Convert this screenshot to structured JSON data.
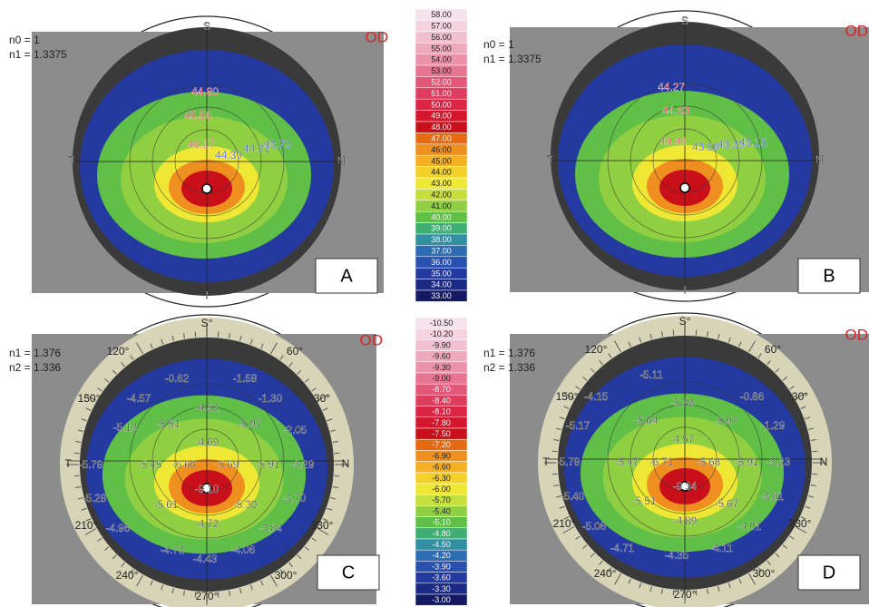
{
  "panels": [
    {
      "label": "A",
      "params": [
        "n0 = 1",
        "n1 = 1.3375"
      ],
      "eye": "OD",
      "compass": [
        "S",
        "T",
        "N",
        "I"
      ],
      "values": [
        "44.80",
        "45.56",
        "46.17",
        "44.39",
        "44.21",
        "43.79"
      ]
    },
    {
      "label": "B",
      "params": [
        "n0 = 1",
        "n1 = 1.3375"
      ],
      "eye": "OD",
      "compass": [
        "S",
        "T",
        "N",
        "I"
      ],
      "values": [
        "44.27",
        "44.63",
        "44.44",
        "43.59",
        "43.39",
        "43.15"
      ]
    },
    {
      "label": "C",
      "params": [
        "n1 = 1.376",
        "n2 = 1.336"
      ],
      "eye": "OD",
      "compass": [
        "S°",
        "T",
        "N"
      ],
      "degrees": [
        "120°",
        "60°",
        "150°",
        "30°",
        "210°",
        "330°",
        "240°",
        "300°",
        "270°"
      ],
      "values": [
        "-0.62",
        "-1.58",
        "-4.57",
        "-4.52",
        "-1.30",
        "-5.13",
        "-5.51",
        "-5.97",
        "-2.05",
        "-4.69",
        "-5.78",
        "-5.45",
        "-6.66",
        "-5.69",
        "-5.91",
        "-3.29",
        "-9.10",
        "-5.28",
        "-5.61",
        "-5.30",
        "-3.70",
        "-4.72",
        "-4.96",
        "-3.84",
        "-4.72",
        "-4.43",
        "-4.06"
      ]
    },
    {
      "label": "D",
      "params": [
        "n1 = 1.376",
        "n2 = 1.336"
      ],
      "eye": "OD",
      "compass": [
        "S°",
        "T",
        "N"
      ],
      "degrees": [
        "120°",
        "60°",
        "150°",
        "30°",
        "210°",
        "330°",
        "240°",
        "300°",
        "270°"
      ],
      "values": [
        "-5.11",
        "-4.15",
        "-5.39",
        "-0.86",
        "-5.17",
        "-5.64",
        "-5.97",
        "-1.29",
        "-4.57",
        "-5.78",
        "-5.47",
        "-6.71",
        "-5.68",
        "-5.91",
        "-3.23",
        "-9.34",
        "-5.40",
        "-5.51",
        "-5.67",
        "-3.81",
        "-4.89",
        "-5.06",
        "-4.01",
        "-4.71",
        "-4.35",
        "-4.11"
      ]
    }
  ],
  "scales": [
    {
      "values": [
        "58.00",
        "57.00",
        "56.00",
        "55.00",
        "54.00",
        "53.00",
        "52.00",
        "51.00",
        "50.00",
        "49.00",
        "48.00",
        "47.00",
        "46.00",
        "45.00",
        "44.00",
        "43.00",
        "42.00",
        "41.00",
        "40.00",
        "39.00",
        "38.00",
        "37.00",
        "36.00",
        "35.00",
        "34.00",
        "33.00"
      ]
    },
    {
      "values": [
        "-10.50",
        "-10.20",
        "-9.90",
        "-9.60",
        "-9.30",
        "-9.00",
        "-8.70",
        "-8.40",
        "-8.10",
        "-7.80",
        "-7.50",
        "-7.20",
        "-6.90",
        "-6.60",
        "-6.30",
        "-6.00",
        "-5.70",
        "-5.40",
        "-5.10",
        "-4.80",
        "-4.50",
        "-4.20",
        "-3.90",
        "-3.60",
        "-3.30",
        "-3.00"
      ]
    }
  ],
  "palette": [
    "#f6e2ec",
    "#f4d2df",
    "#f1c0d0",
    "#efa9bd",
    "#eb91a9",
    "#e77491",
    "#e35878",
    "#df3d5e",
    "#da2545",
    "#d4172c",
    "#c9101a",
    "#e66a12",
    "#ef8f1f",
    "#f4b022",
    "#f3d12a",
    "#eee834",
    "#c6df3f",
    "#90cf42",
    "#5fbf47",
    "#3fae72",
    "#3090a2",
    "#2c6db3",
    "#2951b0",
    "#243aa0",
    "#1c2a84",
    "#141a62"
  ]
}
